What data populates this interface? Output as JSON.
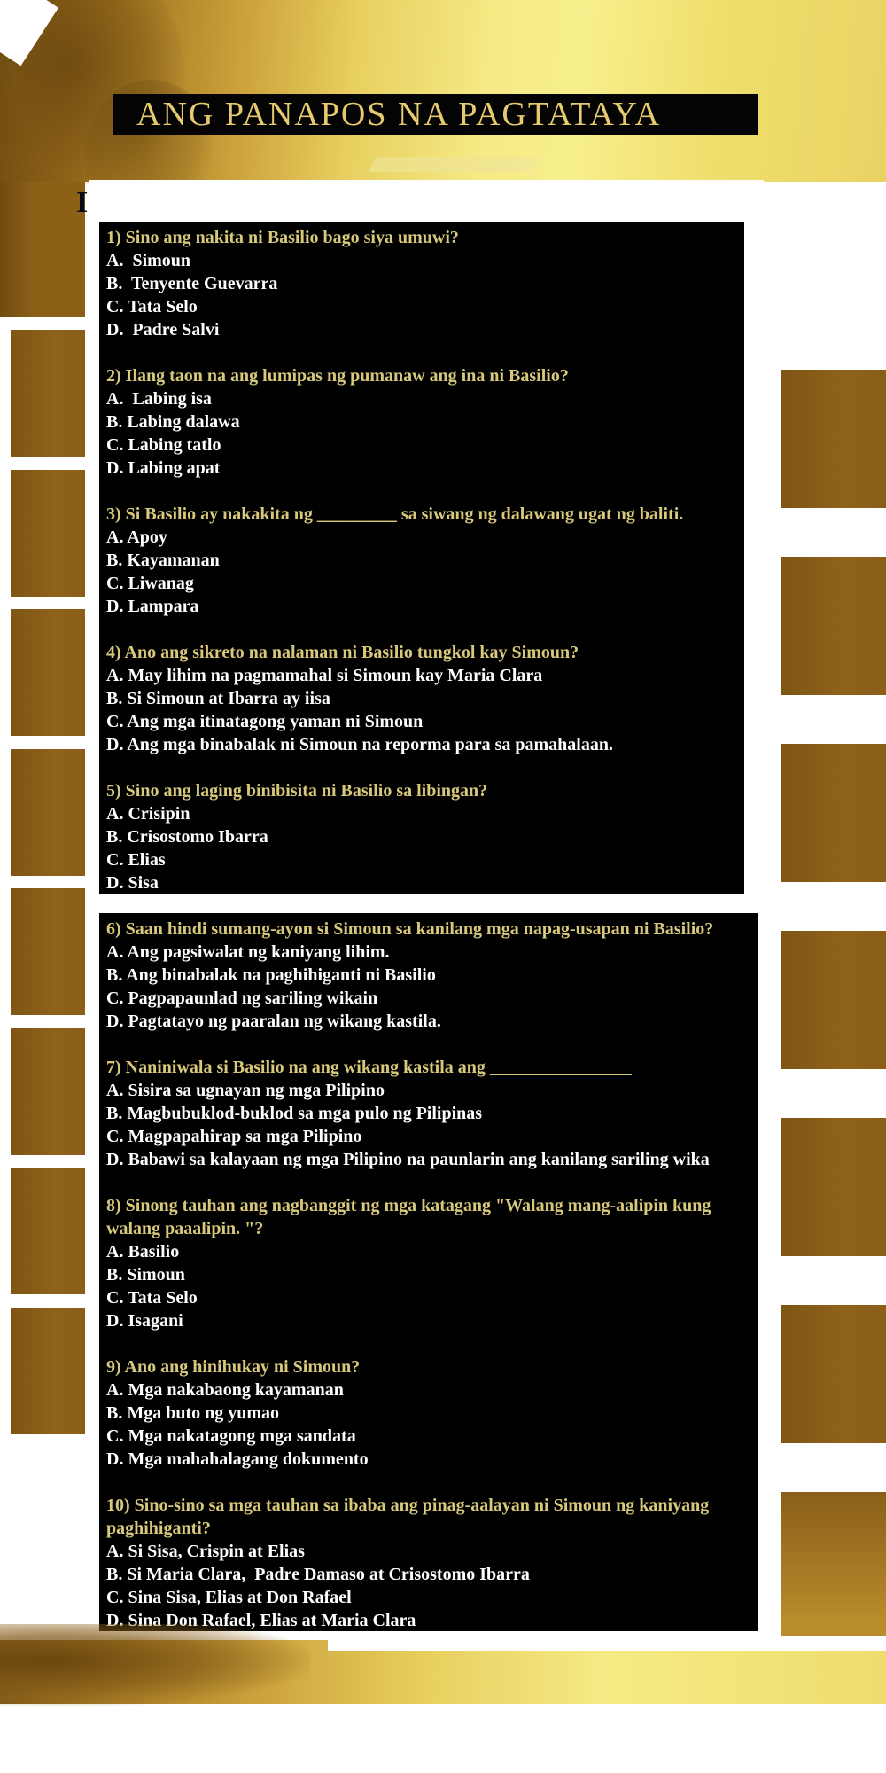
{
  "title": {
    "text": "ANG PANAPOS NA PAGTATAYA"
  },
  "heading_fragment": "I",
  "colors": {
    "question_text": "#d7c87a",
    "option_text": "#ffffff",
    "title_gold": "#e6ca6e",
    "panel_background": "#000000",
    "border_brown": "#8a5e19",
    "band_highlight": "#f5ea85"
  },
  "quiz": {
    "panels": [
      {
        "questions": [
          {
            "q": [
              "1) Sino ang nakita ni Basilio bago siya umuwi?"
            ],
            "options": [
              "A.  Simoun",
              "B.  Tenyente Guevarra",
              "C. Tata Selo",
              "D.  Padre Salvi"
            ]
          },
          {
            "q": [
              "2) Ilang taon na ang lumipas ng pumanaw ang ina ni Basilio?"
            ],
            "options": [
              "A.  Labing isa",
              "B. Labing dalawa",
              "C. Labing tatlo",
              "D. Labing apat"
            ]
          },
          {
            "q": [
              "3) Si Basilio ay nakakita ng _________ sa siwang ng dalawang ugat ng baliti."
            ],
            "options": [
              "A. Apoy",
              "B. Kayamanan",
              "C. Liwanag",
              "D. Lampara"
            ]
          },
          {
            "q": [
              "4) Ano ang sikreto na nalaman ni Basilio tungkol kay Simoun?"
            ],
            "options": [
              "A. May lihim na pagmamahal si Simoun kay Maria Clara",
              "B. Si Simoun at Ibarra ay iisa",
              "C. Ang mga itinatagong yaman ni Simoun",
              "D. Ang mga binabalak ni Simoun na reporma para sa pamahalaan."
            ]
          },
          {
            "q": [
              "5) Sino ang laging binibisita ni Basilio sa libingan?"
            ],
            "options": [
              "A. Crisipin",
              "B. Crisostomo Ibarra",
              "C. Elias",
              "D. Sisa"
            ]
          }
        ]
      },
      {
        "questions": [
          {
            "q": [
              "6) Saan hindi sumang-ayon si Simoun sa kanilang mga napag-usapan ni Basilio?"
            ],
            "options": [
              "A. Ang pagsiwalat ng kaniyang lihim.",
              "B. Ang binabalak na paghihiganti ni Basilio",
              "C. Pagpapaunlad ng sariling wikain",
              "D. Pagtatayo ng paaralan ng wikang kastila."
            ]
          },
          {
            "q": [
              "7) Naniniwala si Basilio na ang wikang kastila ang ________________"
            ],
            "options": [
              "A. Sisira sa ugnayan ng mga Pilipino",
              "B. Magbubuklod-buklod sa mga pulo ng Pilipinas",
              "C. Magpapahirap sa mga Pilipino",
              "D. Babawi sa kalayaan ng mga Pilipino na paunlarin ang kanilang sariling wika"
            ]
          },
          {
            "q": [
              "8) Sinong tauhan ang nagbanggit ng mga katagang \"Walang mang-aalipin kung",
              "walang paaalipin. \"?"
            ],
            "options": [
              "A. Basilio",
              "B. Simoun",
              "C. Tata Selo",
              "D. Isagani"
            ]
          },
          {
            "q": [
              "9) Ano ang hinihukay ni Simoun?"
            ],
            "options": [
              "A. Mga nakabaong kayamanan",
              "B. Mga buto ng yumao",
              "C. Mga nakatagong mga sandata",
              "D. Mga mahahalagang dokumento"
            ]
          },
          {
            "q": [
              "10) Sino-sino sa mga tauhan sa ibaba ang pinag-aalayan ni Simoun ng kaniyang",
              "paghihiganti?"
            ],
            "options": [
              "A. Si Sisa, Crispin at Elias",
              "B. Si Maria Clara,  Padre Damaso at Crisostomo Ibarra",
              "C. Sina Sisa, Elias at Don Rafael",
              "D. Sina Don Rafael, Elias at Maria Clara"
            ]
          }
        ]
      }
    ]
  }
}
